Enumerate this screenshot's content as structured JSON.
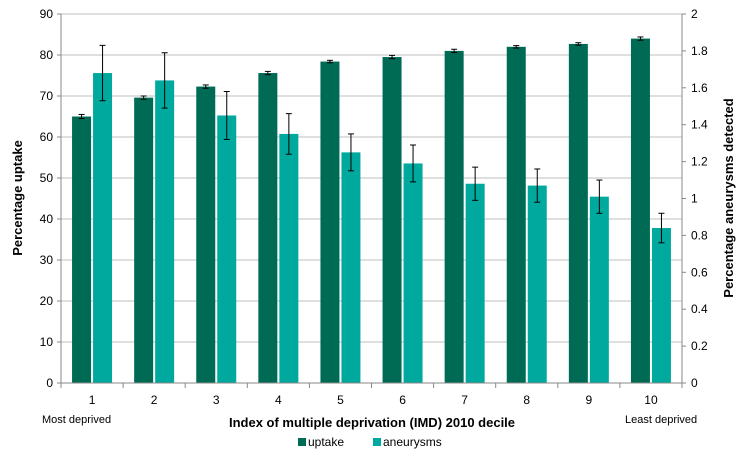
{
  "chart_data": {
    "type": "bar",
    "xlabel": "Index of multiple deprivation (IMD) 2010 decile",
    "categories": [
      "1",
      "2",
      "3",
      "4",
      "5",
      "6",
      "7",
      "8",
      "9",
      "10"
    ],
    "category_notes": {
      "first": "Most deprived",
      "last": "Least deprived"
    },
    "ylabel_left": "Percentage uptake",
    "ylabel_right": "Percentage aneurysms detected",
    "ylim_left": [
      0,
      90
    ],
    "yticks_left": [
      0,
      10,
      20,
      30,
      40,
      50,
      60,
      70,
      80,
      90
    ],
    "ylim_right": [
      0,
      2
    ],
    "yticks_right": [
      "0",
      "0.2",
      "0.4",
      "0.6",
      "0.8",
      "1",
      "1.2",
      "1.4",
      "1.6",
      "1.8",
      "2"
    ],
    "grid": true,
    "legend_position": "bottom",
    "series": [
      {
        "name": "uptake",
        "axis": "left",
        "color": "#006b54",
        "values": [
          65.0,
          69.6,
          72.3,
          75.6,
          78.4,
          79.5,
          81.0,
          82.0,
          82.7,
          84.0
        ],
        "error": [
          0.5,
          0.4,
          0.4,
          0.4,
          0.3,
          0.4,
          0.4,
          0.3,
          0.3,
          0.4
        ]
      },
      {
        "name": "aneurysms",
        "axis": "right",
        "color": "#00a99d",
        "values": [
          1.68,
          1.64,
          1.45,
          1.35,
          1.25,
          1.19,
          1.08,
          1.07,
          1.01,
          0.84
        ],
        "error": [
          0.15,
          0.15,
          0.13,
          0.11,
          0.1,
          0.1,
          0.09,
          0.09,
          0.09,
          0.08
        ]
      }
    ]
  }
}
